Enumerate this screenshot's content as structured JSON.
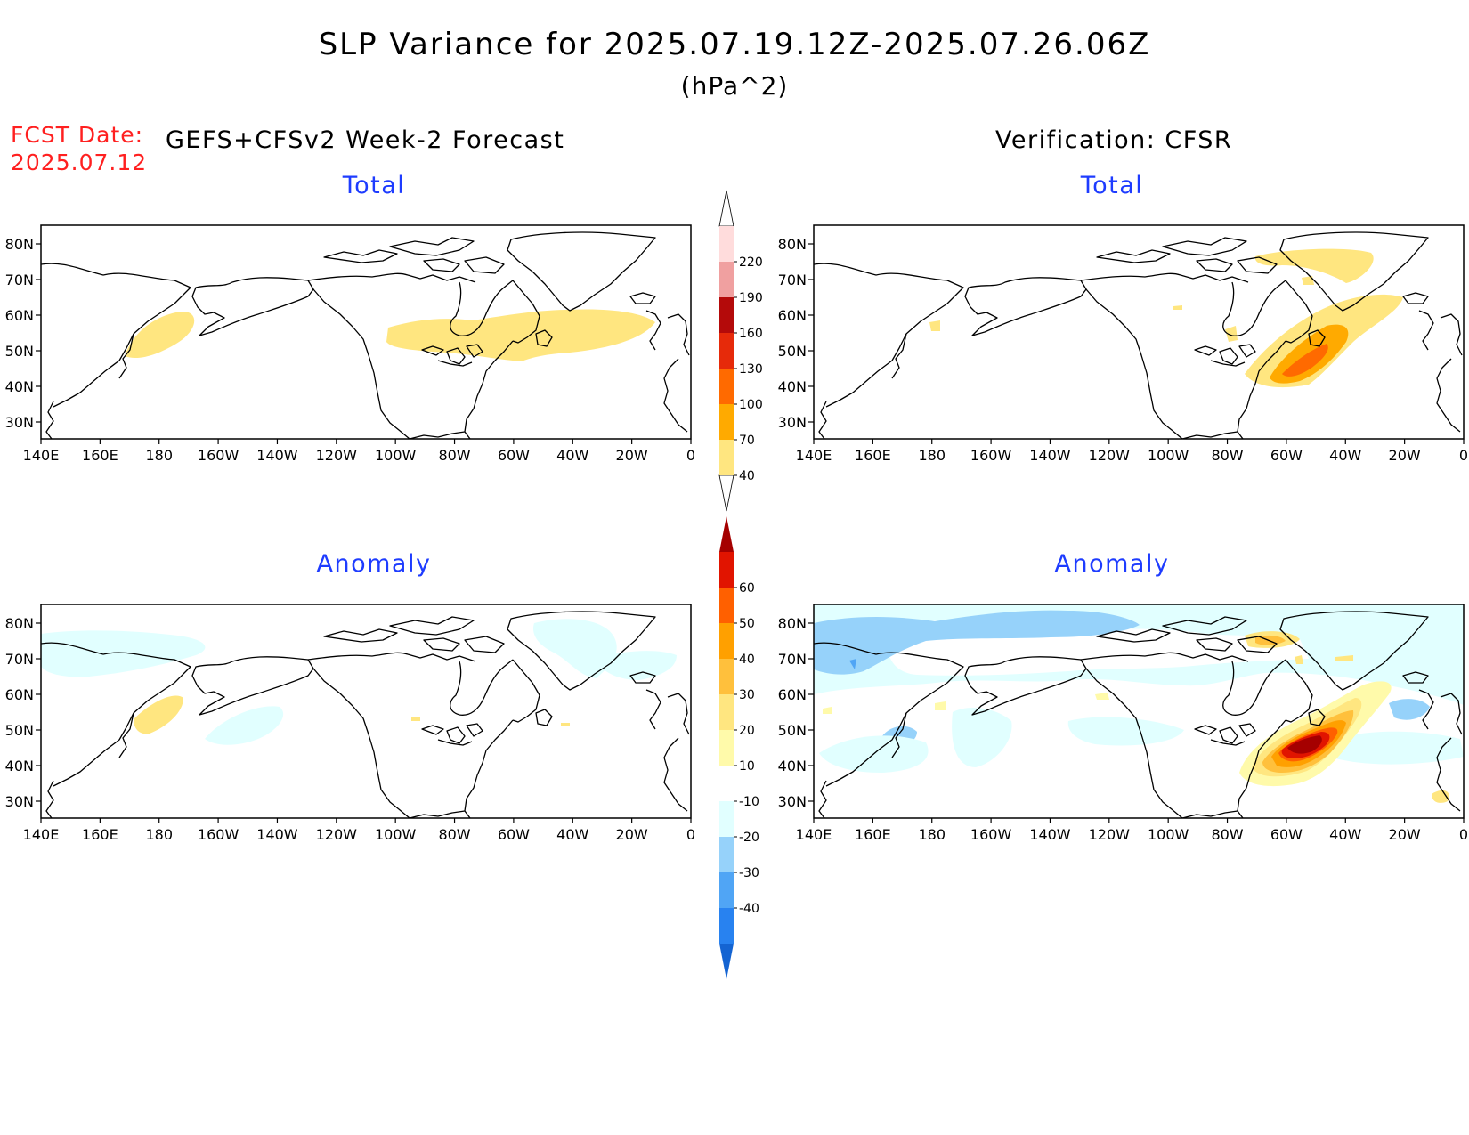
{
  "title": "SLP Variance for 2025.07.19.12Z-2025.07.26.06Z",
  "units": "(hPa^2)",
  "fcst_label": "FCST Date:",
  "fcst_date": "2025.07.12",
  "left_header": "GEFS+CFSv2 Week-2 Forecast",
  "right_header": "Verification: CFSR",
  "panels": {
    "top_left": "Total",
    "top_right": "Total",
    "bottom_left": "Anomaly",
    "bottom_right": "Anomaly"
  },
  "lat_labels": [
    "80N",
    "70N",
    "60N",
    "50N",
    "40N",
    "30N"
  ],
  "lon_labels": [
    "140E",
    "160E",
    "180",
    "160W",
    "140W",
    "120W",
    "100W",
    "80W",
    "60W",
    "40W",
    "20W",
    "0"
  ],
  "total_colorbar": {
    "labels": [
      "40",
      "70",
      "100",
      "130",
      "160",
      "190",
      "220"
    ],
    "colors": [
      "#ffe680",
      "#ffaa00",
      "#ff6a00",
      "#e62a0a",
      "#b40a0a",
      "#f0a0a0",
      "#ffdcdc"
    ]
  },
  "anomaly_colorbar": {
    "labels": [
      "-40",
      "-30",
      "-20",
      "-10",
      "10",
      "20",
      "30",
      "40",
      "50",
      "60"
    ],
    "colors": [
      "#1464d2",
      "#2882f0",
      "#50a5f5",
      "#96d2fa",
      "#e1ffff",
      "#ffffff",
      "#fffaaa",
      "#ffe680",
      "#ffc03c",
      "#ffa000",
      "#ff6000",
      "#e11400",
      "#a50000"
    ]
  }
}
